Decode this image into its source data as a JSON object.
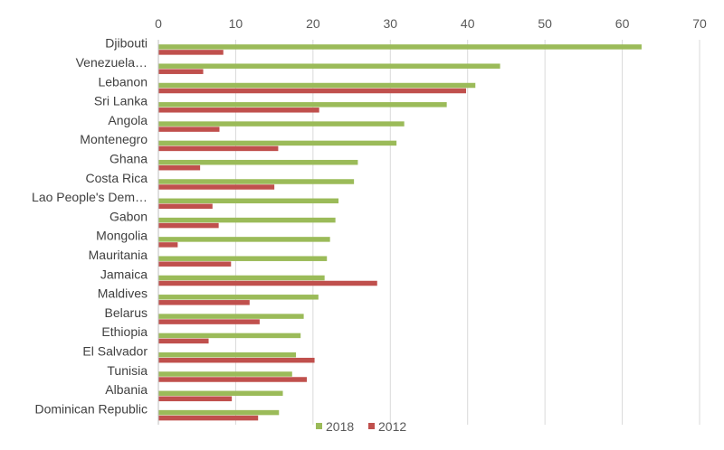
{
  "chart_data": {
    "type": "bar",
    "orientation": "horizontal",
    "x_axis_position": "top",
    "grid": true,
    "legend_position": "bottom",
    "xlim": [
      0,
      70
    ],
    "xticks": [
      0,
      10,
      20,
      30,
      40,
      50,
      60,
      70
    ],
    "categories": [
      "Djibouti",
      "Venezuela…",
      "Lebanon",
      "Sri Lanka",
      "Angola",
      "Montenegro",
      "Ghana",
      "Costa Rica",
      "Lao People's Dem…",
      "Gabon",
      "Mongolia",
      "Mauritania",
      "Jamaica",
      "Maldives",
      "Belarus",
      "Ethiopia",
      "El Salvador",
      "Tunisia",
      "Albania",
      "Dominican Republic"
    ],
    "series": [
      {
        "name": "2018",
        "color": "#9BBB59",
        "values": [
          62.5,
          44.2,
          41.0,
          37.3,
          31.8,
          30.8,
          25.8,
          25.3,
          23.3,
          22.9,
          22.2,
          21.8,
          21.5,
          20.7,
          18.8,
          18.4,
          17.8,
          17.3,
          16.1,
          15.6
        ]
      },
      {
        "name": "2012",
        "color": "#C0504D",
        "values": [
          8.4,
          5.8,
          39.8,
          20.8,
          7.9,
          15.5,
          5.4,
          15.0,
          7.0,
          7.8,
          2.5,
          9.4,
          28.3,
          11.8,
          13.1,
          6.5,
          20.2,
          19.2,
          9.5,
          12.9
        ]
      }
    ]
  }
}
